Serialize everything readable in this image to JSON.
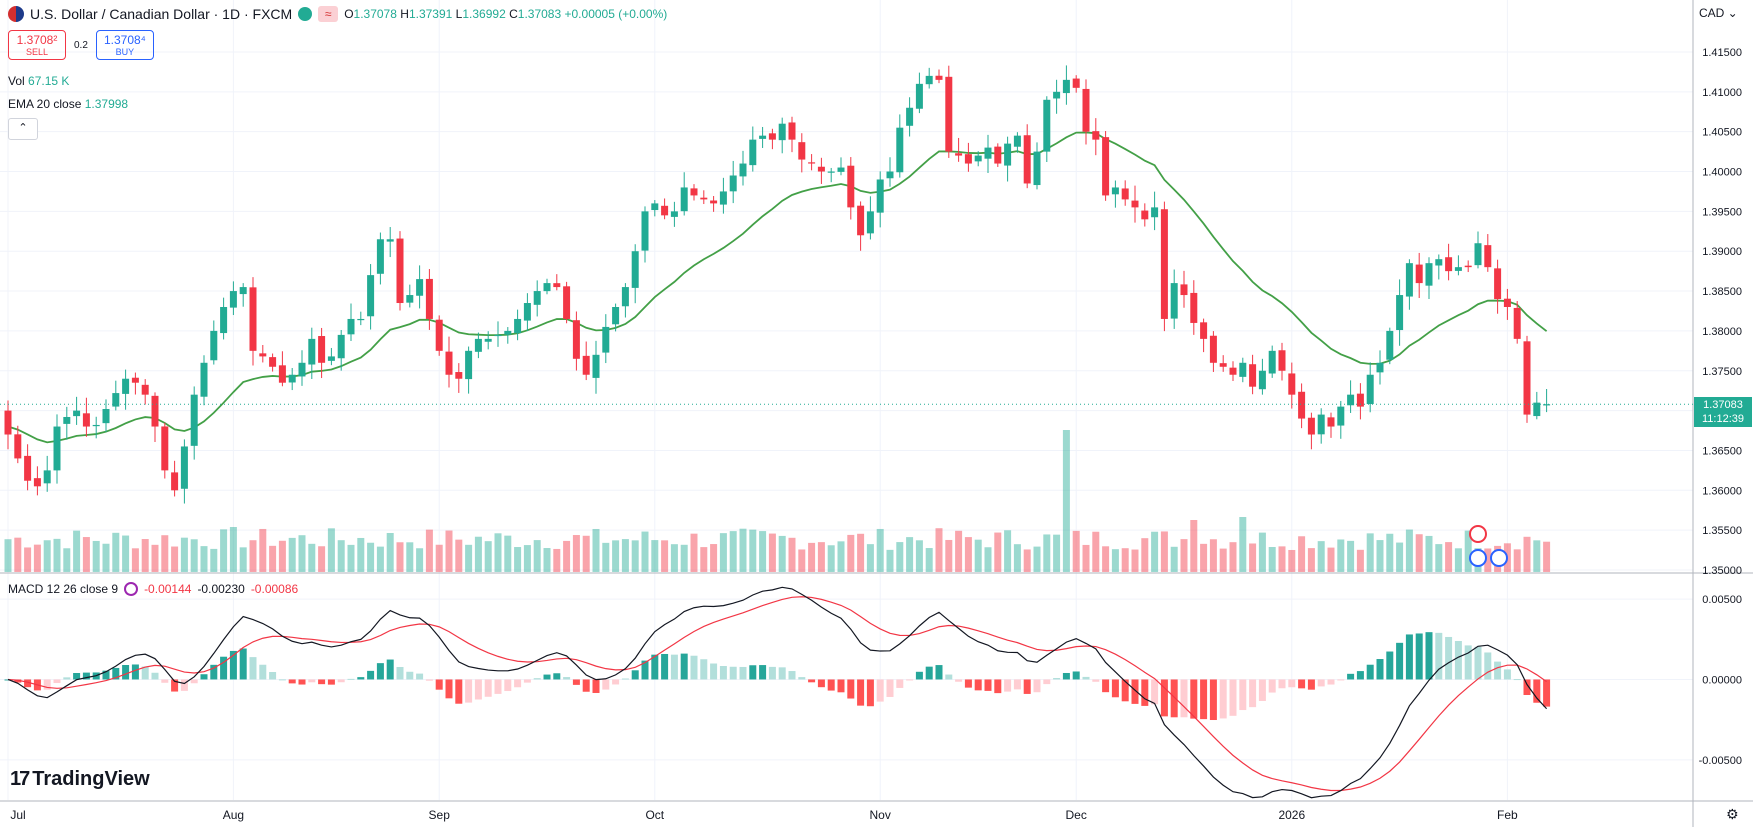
{
  "header": {
    "symbol": "U.S. Dollar / Canadian Dollar · 1D · FXCM",
    "open_label": "O",
    "open": "1.37078",
    "high_label": "H",
    "high": "1.37391",
    "low_label": "L",
    "low": "1.36992",
    "close_label": "C",
    "close": "1.37083",
    "change": "+0.00005 (+0.00%)",
    "wave_glyph": "≈"
  },
  "trade": {
    "sell_price": "1.3708²",
    "sell_label": "SELL",
    "spread": "0.2",
    "buy_price": "1.3708⁴",
    "buy_label": "BUY"
  },
  "indicators": {
    "vol_label": "Vol",
    "vol_value": "67.15 K",
    "ema_label": "EMA 20 close",
    "ema_value": "1.37998",
    "collapse_glyph": "⌃",
    "macd_label": "MACD 12 26 close 9",
    "macd_hist": "-0.00144",
    "macd_line": "-0.00230",
    "macd_signal": "-0.00086"
  },
  "currency": "CAD",
  "brand": "TradingView",
  "brand_mark": "17",
  "current_price": "1.37083",
  "countdown": "11:12:39",
  "colors": {
    "up": "#22ab94",
    "down": "#f23645",
    "ema": "#43a047",
    "grid": "#f0f3fa",
    "macd_signal": "#f23645",
    "macd_line": "#131722"
  },
  "chart_data": {
    "type": "candlestick",
    "title": "U.S. Dollar / Canadian Dollar · 1D · FXCM",
    "price_axis": {
      "range": [
        1.35,
        1.416
      ],
      "ticks": [
        "1.35000",
        "1.35500",
        "1.36000",
        "1.36500",
        "1.37000",
        "1.37500",
        "1.38000",
        "1.38500",
        "1.39000",
        "1.39500",
        "1.40000",
        "1.40500",
        "1.41000",
        "1.41500"
      ]
    },
    "macd_axis": {
      "range": [
        -0.0075,
        0.0065
      ],
      "ticks": [
        "0.00500",
        "0.00000",
        "-0.00500"
      ]
    },
    "x_ticks": [
      {
        "label": "Jul",
        "index": 0
      },
      {
        "label": "Aug",
        "index": 23
      },
      {
        "label": "Sep",
        "index": 44
      },
      {
        "label": "Oct",
        "index": 66
      },
      {
        "label": "Nov",
        "index": 89
      },
      {
        "label": "Dec",
        "index": 109
      },
      {
        "label": "2026",
        "index": 131
      },
      {
        "label": "Feb",
        "index": 153
      }
    ],
    "closes": [
      1.367,
      1.364,
      1.3612,
      1.3605,
      1.3625,
      1.368,
      1.3692,
      1.37,
      1.368,
      1.3682,
      1.3702,
      1.3722,
      1.374,
      1.3735,
      1.372,
      1.368,
      1.3625,
      1.36,
      1.3655,
      1.372,
      1.376,
      1.38,
      1.383,
      1.385,
      1.3855,
      1.3775,
      1.3768,
      1.3755,
      1.3735,
      1.3745,
      1.376,
      1.379,
      1.376,
      1.3768,
      1.3795,
      1.3815,
      1.3815,
      1.387,
      1.3915,
      1.3915,
      1.3835,
      1.3845,
      1.3865,
      1.3815,
      1.3775,
      1.3745,
      1.374,
      1.3775,
      1.379,
      1.379,
      1.3795,
      1.38,
      1.3815,
      1.3835,
      1.385,
      1.386,
      1.3855,
      1.3815,
      1.3765,
      1.3745,
      1.377,
      1.3805,
      1.383,
      1.3855,
      1.39,
      1.395,
      1.396,
      1.3945,
      1.395,
      1.398,
      1.397,
      1.3965,
      1.396,
      1.3975,
      1.3995,
      1.401,
      1.404,
      1.4045,
      1.404,
      1.406,
      1.404,
      1.4015,
      1.401,
      1.4,
      1.4,
      1.4005,
      1.3955,
      1.392,
      1.395,
      1.399,
      1.4,
      1.4055,
      1.408,
      1.411,
      1.412,
      1.4115,
      1.4025,
      1.402,
      1.401,
      1.402,
      1.403,
      1.401,
      1.4035,
      1.4045,
      1.3985,
      1.4025,
      1.409,
      1.41,
      1.4115,
      1.4105,
      1.405,
      1.404,
      1.397,
      1.398,
      1.3965,
      1.3955,
      1.394,
      1.3955,
      1.3815,
      1.386,
      1.3845,
      1.381,
      1.379,
      1.376,
      1.3755,
      1.3745,
      1.376,
      1.373,
      1.375,
      1.3775,
      1.375,
      1.372,
      1.369,
      1.367,
      1.3695,
      1.368,
      1.3705,
      1.372,
      1.3705,
      1.3745,
      1.376,
      1.38,
      1.3845,
      1.3885,
      1.386,
      1.3885,
      1.389,
      1.3875,
      1.388,
      1.388,
      1.391,
      1.388,
      1.384,
      1.383,
      1.379,
      1.3695,
      1.371,
      1.3708
    ]
  }
}
